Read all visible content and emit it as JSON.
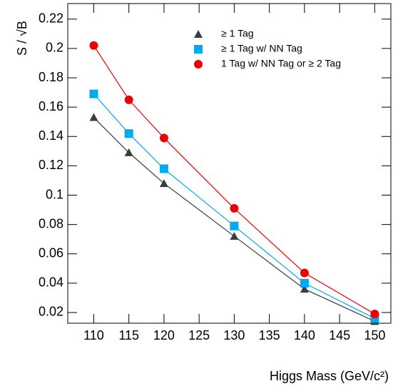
{
  "chart_data": {
    "type": "line",
    "xlabel": "Higgs Mass (GeV/c²)",
    "ylabel": "S / √B",
    "x": [
      110,
      115,
      120,
      130,
      140,
      150
    ],
    "series": [
      {
        "name": "≥ 1 Tag",
        "color": "#3c3c3c",
        "marker": "triangle",
        "values": [
          0.153,
          0.129,
          0.108,
          0.072,
          0.036,
          0.014
        ]
      },
      {
        "name": "≥ 1 Tag w/ NN Tag",
        "color": "#00aaee",
        "marker": "square",
        "values": [
          0.169,
          0.142,
          0.118,
          0.079,
          0.04,
          0.016
        ]
      },
      {
        "name": "1 Tag w/ NN Tag or ≥ 2 Tag",
        "color": "#ee0000",
        "marker": "circle",
        "values": [
          0.202,
          0.165,
          0.139,
          0.091,
          0.047,
          0.019
        ]
      }
    ],
    "xlim": [
      106.3,
      152.3
    ],
    "xticks": [
      110,
      115,
      120,
      125,
      130,
      135,
      140,
      145,
      150
    ],
    "ylim": [
      0.0127,
      0.2306
    ],
    "yticks": [
      0.02,
      0.04,
      0.06,
      0.08,
      0.1,
      0.12,
      0.14,
      0.16,
      0.18,
      0.2,
      0.22
    ],
    "legend": "upper right"
  }
}
